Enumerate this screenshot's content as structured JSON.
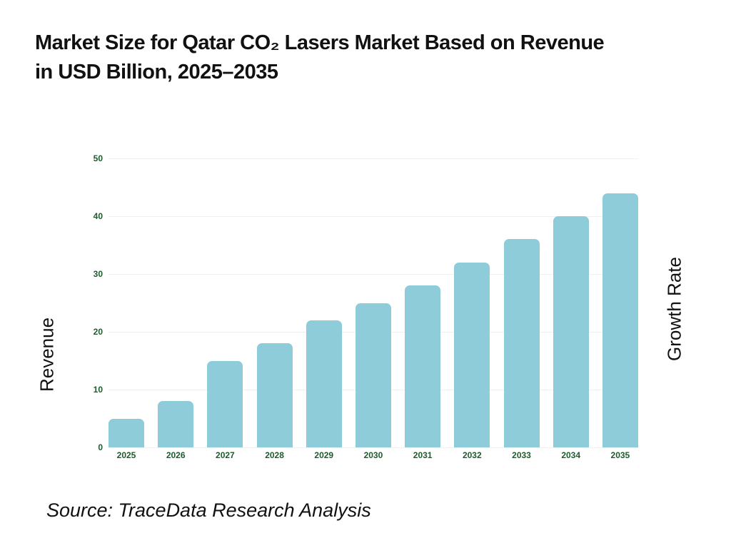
{
  "title": {
    "line1": "Market Size for Qatar CO₂ Lasers Market Based on Revenue",
    "line2": "in USD Billion, 2025–2035"
  },
  "chart_data": {
    "type": "bar",
    "title": "Market Size for Qatar CO₂ Lasers Market Based on Revenue in USD Billion, 2025–2035",
    "categories": [
      "2025",
      "2026",
      "2027",
      "2028",
      "2029",
      "2030",
      "2031",
      "2032",
      "2033",
      "2034",
      "2035"
    ],
    "values": [
      5,
      8,
      15,
      18,
      22,
      25,
      28,
      32,
      36,
      40,
      44
    ],
    "series_name": "Revenue (USD Billion)",
    "ylabel_left": "Revenue",
    "ylabel_right": "Growth Rate",
    "xlabel": "",
    "ylim": [
      0,
      50
    ],
    "y_ticks": [
      0,
      10,
      20,
      30,
      40,
      50
    ],
    "grid": true,
    "legend_position": "none",
    "bar_color": "#8dccd8",
    "tick_label_color": "#1e5b2f",
    "gridline_color": "#f0f0f0"
  },
  "source": {
    "text": "Source: TraceData Research Analysis"
  }
}
